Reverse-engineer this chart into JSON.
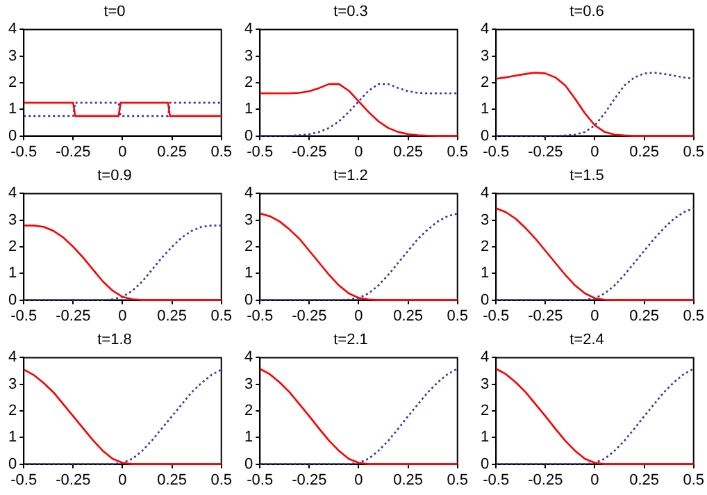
{
  "chart_data": [
    {
      "type": "line",
      "title": "t=0",
      "xlim": [
        -0.5,
        0.5
      ],
      "ylim": [
        0,
        4
      ],
      "xticks": [
        -0.5,
        -0.25,
        0,
        0.25,
        0.5
      ],
      "yticks": [
        0,
        1,
        2,
        3,
        4
      ],
      "grid": false,
      "series": [
        {
          "color": "#ff0000",
          "line_style": "solid",
          "x": [
            -0.5,
            -0.25,
            -0.24,
            -0.02,
            -0.01,
            0.23,
            0.24,
            0.5
          ],
          "values": [
            1.25,
            1.25,
            0.75,
            0.75,
            1.25,
            1.25,
            0.75,
            0.75
          ]
        },
        {
          "color": "#3333bb",
          "line_style": "dotted",
          "x": [
            -0.5,
            -0.25,
            -0.24,
            -0.02,
            -0.01,
            0.23,
            0.24,
            0.5
          ],
          "values": [
            0.75,
            0.75,
            1.25,
            1.25,
            0.75,
            0.75,
            1.25,
            1.25
          ]
        }
      ]
    },
    {
      "type": "line",
      "title": "t=0.3",
      "xlim": [
        -0.5,
        0.5
      ],
      "ylim": [
        0,
        4
      ],
      "xticks": [
        -0.5,
        -0.25,
        0,
        0.25,
        0.5
      ],
      "yticks": [
        0,
        1,
        2,
        3,
        4
      ],
      "grid": false,
      "x": [
        -0.5,
        -0.45,
        -0.4,
        -0.35,
        -0.3,
        -0.25,
        -0.2,
        -0.15,
        -0.1,
        -0.05,
        0,
        0.05,
        0.1,
        0.15,
        0.2,
        0.25,
        0.3,
        0.35,
        0.4,
        0.45,
        0.5
      ],
      "series": [
        {
          "color": "#ff0000",
          "line_style": "solid",
          "values": [
            1.6,
            1.6,
            1.6,
            1.6,
            1.62,
            1.68,
            1.8,
            1.95,
            1.95,
            1.7,
            1.3,
            0.9,
            0.55,
            0.3,
            0.15,
            0.07,
            0.03,
            0.01,
            0,
            0,
            0
          ]
        },
        {
          "color": "#3333bb",
          "line_style": "dotted",
          "values": [
            0,
            0,
            0,
            0.01,
            0.03,
            0.07,
            0.15,
            0.3,
            0.55,
            0.9,
            1.3,
            1.7,
            1.95,
            1.95,
            1.8,
            1.68,
            1.62,
            1.6,
            1.6,
            1.6,
            1.6
          ]
        }
      ]
    },
    {
      "type": "line",
      "title": "t=0.6",
      "xlim": [
        -0.5,
        0.5
      ],
      "ylim": [
        0,
        4
      ],
      "xticks": [
        -0.5,
        -0.25,
        0,
        0.25,
        0.5
      ],
      "yticks": [
        0,
        1,
        2,
        3,
        4
      ],
      "grid": false,
      "x": [
        -0.5,
        -0.45,
        -0.4,
        -0.35,
        -0.3,
        -0.25,
        -0.2,
        -0.15,
        -0.1,
        -0.05,
        0,
        0.05,
        0.1,
        0.15,
        0.2,
        0.25,
        0.3,
        0.35,
        0.4,
        0.45,
        0.5
      ],
      "series": [
        {
          "color": "#ff0000",
          "line_style": "solid",
          "values": [
            2.15,
            2.2,
            2.27,
            2.33,
            2.38,
            2.35,
            2.2,
            1.9,
            1.4,
            0.85,
            0.4,
            0.15,
            0.05,
            0.02,
            0,
            0,
            0,
            0,
            0,
            0,
            0
          ]
        },
        {
          "color": "#3333bb",
          "line_style": "dotted",
          "values": [
            0,
            0,
            0,
            0,
            0,
            0,
            0,
            0.02,
            0.05,
            0.15,
            0.4,
            0.85,
            1.4,
            1.9,
            2.2,
            2.35,
            2.38,
            2.33,
            2.27,
            2.2,
            2.15
          ]
        }
      ]
    },
    {
      "type": "line",
      "title": "t=0.9",
      "xlim": [
        -0.5,
        0.5
      ],
      "ylim": [
        0,
        4
      ],
      "xticks": [
        -0.5,
        -0.25,
        0,
        0.25,
        0.5
      ],
      "yticks": [
        0,
        1,
        2,
        3,
        4
      ],
      "grid": false,
      "x": [
        -0.5,
        -0.45,
        -0.4,
        -0.35,
        -0.3,
        -0.25,
        -0.2,
        -0.15,
        -0.1,
        -0.05,
        0,
        0.05,
        0.1,
        0.15,
        0.2,
        0.25,
        0.3,
        0.35,
        0.4,
        0.45,
        0.5
      ],
      "series": [
        {
          "color": "#ff0000",
          "line_style": "solid",
          "values": [
            2.8,
            2.8,
            2.75,
            2.6,
            2.35,
            2,
            1.6,
            1.15,
            0.7,
            0.35,
            0.12,
            0.03,
            0,
            0,
            0,
            0,
            0,
            0,
            0,
            0,
            0
          ]
        },
        {
          "color": "#3333bb",
          "line_style": "dotted",
          "values": [
            0,
            0,
            0,
            0,
            0,
            0,
            0,
            0,
            0,
            0.03,
            0.12,
            0.35,
            0.7,
            1.15,
            1.6,
            2,
            2.35,
            2.6,
            2.75,
            2.8,
            2.8
          ]
        }
      ]
    },
    {
      "type": "line",
      "title": "t=1.2",
      "xlim": [
        -0.5,
        0.5
      ],
      "ylim": [
        0,
        4
      ],
      "xticks": [
        -0.5,
        -0.25,
        0,
        0.25,
        0.5
      ],
      "yticks": [
        0,
        1,
        2,
        3,
        4
      ],
      "grid": false,
      "x": [
        -0.5,
        -0.45,
        -0.4,
        -0.35,
        -0.3,
        -0.25,
        -0.2,
        -0.15,
        -0.1,
        -0.05,
        0,
        0.05,
        0.1,
        0.15,
        0.2,
        0.25,
        0.3,
        0.35,
        0.4,
        0.45,
        0.5
      ],
      "series": [
        {
          "color": "#ff0000",
          "line_style": "solid",
          "values": [
            3.25,
            3.15,
            2.95,
            2.65,
            2.3,
            1.85,
            1.4,
            0.95,
            0.55,
            0.25,
            0.08,
            0.02,
            0,
            0,
            0,
            0,
            0,
            0,
            0,
            0,
            0
          ]
        },
        {
          "color": "#3333bb",
          "line_style": "dotted",
          "values": [
            0,
            0,
            0,
            0,
            0,
            0,
            0,
            0,
            0,
            0.02,
            0.08,
            0.25,
            0.55,
            0.95,
            1.4,
            1.85,
            2.3,
            2.65,
            2.95,
            3.15,
            3.25
          ]
        }
      ]
    },
    {
      "type": "line",
      "title": "t=1.5",
      "xlim": [
        -0.5,
        0.5
      ],
      "ylim": [
        0,
        4
      ],
      "xticks": [
        -0.5,
        -0.25,
        0,
        0.25,
        0.5
      ],
      "yticks": [
        0,
        1,
        2,
        3,
        4
      ],
      "grid": false,
      "x": [
        -0.5,
        -0.45,
        -0.4,
        -0.35,
        -0.3,
        -0.25,
        -0.2,
        -0.15,
        -0.1,
        -0.05,
        0,
        0.05,
        0.1,
        0.15,
        0.2,
        0.25,
        0.3,
        0.35,
        0.4,
        0.45,
        0.5
      ],
      "series": [
        {
          "color": "#ff0000",
          "line_style": "solid",
          "values": [
            3.45,
            3.3,
            3.05,
            2.7,
            2.3,
            1.85,
            1.4,
            0.95,
            0.55,
            0.25,
            0.07,
            0.01,
            0,
            0,
            0,
            0,
            0,
            0,
            0,
            0,
            0
          ]
        },
        {
          "color": "#3333bb",
          "line_style": "dotted",
          "values": [
            0,
            0,
            0,
            0,
            0,
            0,
            0,
            0,
            0,
            0.01,
            0.07,
            0.25,
            0.55,
            0.95,
            1.4,
            1.85,
            2.3,
            2.7,
            3.05,
            3.3,
            3.45
          ]
        }
      ]
    },
    {
      "type": "line",
      "title": "t=1.8",
      "xlim": [
        -0.5,
        0.5
      ],
      "ylim": [
        0,
        4
      ],
      "xticks": [
        -0.5,
        -0.25,
        0,
        0.25,
        0.5
      ],
      "yticks": [
        0,
        1,
        2,
        3,
        4
      ],
      "grid": false,
      "x": [
        -0.5,
        -0.45,
        -0.4,
        -0.35,
        -0.3,
        -0.25,
        -0.2,
        -0.15,
        -0.1,
        -0.05,
        0,
        0.05,
        0.1,
        0.15,
        0.2,
        0.25,
        0.3,
        0.35,
        0.4,
        0.45,
        0.5
      ],
      "series": [
        {
          "color": "#ff0000",
          "line_style": "solid",
          "values": [
            3.55,
            3.35,
            3.05,
            2.7,
            2.25,
            1.8,
            1.35,
            0.9,
            0.5,
            0.2,
            0.05,
            0,
            0,
            0,
            0,
            0,
            0,
            0,
            0,
            0,
            0
          ]
        },
        {
          "color": "#3333bb",
          "line_style": "dotted",
          "values": [
            0,
            0,
            0,
            0,
            0,
            0,
            0,
            0,
            0,
            0,
            0.05,
            0.2,
            0.5,
            0.9,
            1.35,
            1.8,
            2.25,
            2.7,
            3.05,
            3.35,
            3.55
          ]
        }
      ]
    },
    {
      "type": "line",
      "title": "t=2.1",
      "xlim": [
        -0.5,
        0.5
      ],
      "ylim": [
        0,
        4
      ],
      "xticks": [
        -0.5,
        -0.25,
        0,
        0.25,
        0.5
      ],
      "yticks": [
        0,
        1,
        2,
        3,
        4
      ],
      "grid": false,
      "x": [
        -0.5,
        -0.45,
        -0.4,
        -0.35,
        -0.3,
        -0.25,
        -0.2,
        -0.15,
        -0.1,
        -0.05,
        0,
        0.05,
        0.1,
        0.15,
        0.2,
        0.25,
        0.3,
        0.35,
        0.4,
        0.45,
        0.5
      ],
      "series": [
        {
          "color": "#ff0000",
          "line_style": "solid",
          "values": [
            3.58,
            3.38,
            3.07,
            2.7,
            2.25,
            1.8,
            1.33,
            0.88,
            0.5,
            0.2,
            0.05,
            0,
            0,
            0,
            0,
            0,
            0,
            0,
            0,
            0,
            0
          ]
        },
        {
          "color": "#3333bb",
          "line_style": "dotted",
          "values": [
            0,
            0,
            0,
            0,
            0,
            0,
            0,
            0,
            0,
            0,
            0.05,
            0.2,
            0.5,
            0.88,
            1.33,
            1.8,
            2.25,
            2.7,
            3.07,
            3.38,
            3.58
          ]
        }
      ]
    },
    {
      "type": "line",
      "title": "t=2.4",
      "xlim": [
        -0.5,
        0.5
      ],
      "ylim": [
        0,
        4
      ],
      "xticks": [
        -0.5,
        -0.25,
        0,
        0.25,
        0.5
      ],
      "yticks": [
        0,
        1,
        2,
        3,
        4
      ],
      "grid": false,
      "x": [
        -0.5,
        -0.45,
        -0.4,
        -0.35,
        -0.3,
        -0.25,
        -0.2,
        -0.15,
        -0.1,
        -0.05,
        0,
        0.05,
        0.1,
        0.15,
        0.2,
        0.25,
        0.3,
        0.35,
        0.4,
        0.45,
        0.5
      ],
      "series": [
        {
          "color": "#ff0000",
          "line_style": "solid",
          "values": [
            3.58,
            3.38,
            3.07,
            2.7,
            2.25,
            1.8,
            1.33,
            0.88,
            0.5,
            0.2,
            0.05,
            0,
            0,
            0,
            0,
            0,
            0,
            0,
            0,
            0,
            0
          ]
        },
        {
          "color": "#3333bb",
          "line_style": "dotted",
          "values": [
            0,
            0,
            0,
            0,
            0,
            0,
            0,
            0,
            0,
            0,
            0.05,
            0.2,
            0.5,
            0.88,
            1.33,
            1.8,
            2.25,
            2.7,
            3.07,
            3.38,
            3.58
          ]
        }
      ]
    }
  ]
}
